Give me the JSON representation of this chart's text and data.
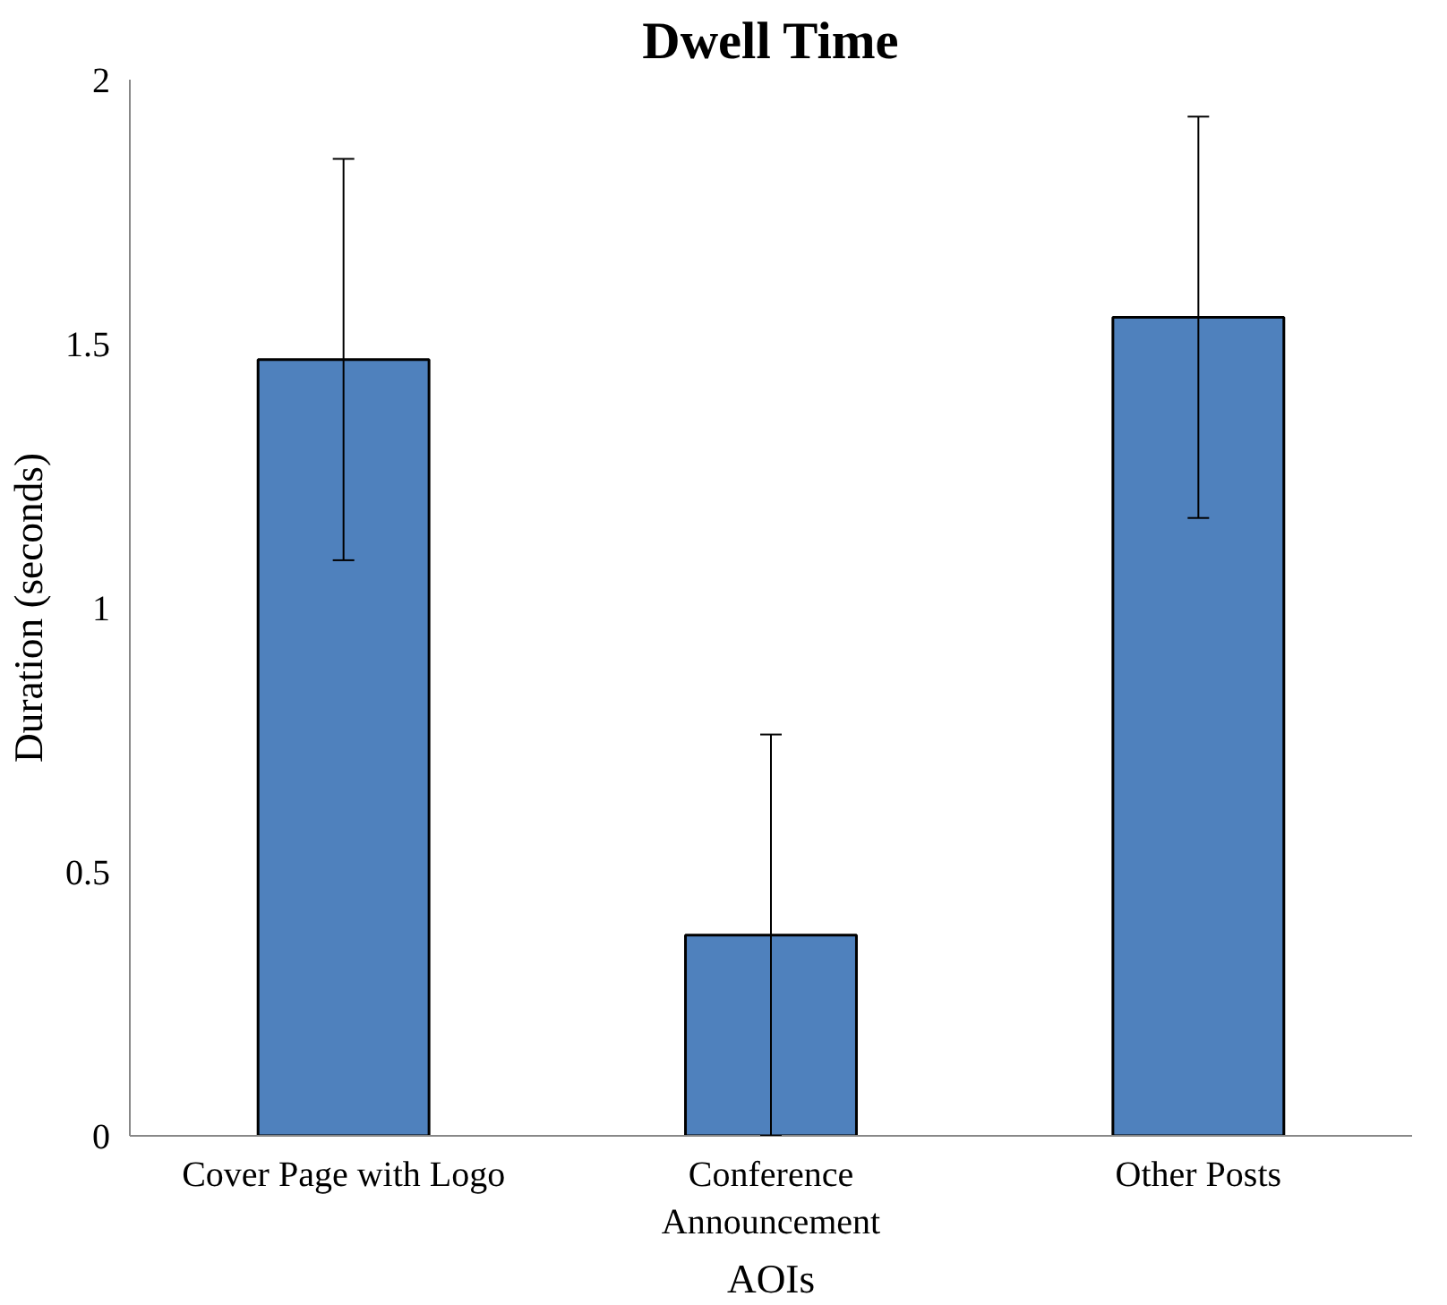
{
  "chart_data": {
    "type": "bar",
    "title": "Dwell Time",
    "xlabel": "AOIs",
    "ylabel": "Duration (seconds)",
    "categories": [
      "Cover Page with Logo",
      "Conference\nAnnouncement",
      "Other Posts"
    ],
    "values": [
      1.47,
      0.38,
      1.55
    ],
    "errors": [
      0.38,
      0.38,
      0.38
    ],
    "color": "#4f81bd",
    "ylim": [
      0,
      2
    ],
    "yticks": [
      0,
      0.5,
      1,
      1.5,
      2
    ],
    "grid": false
  }
}
